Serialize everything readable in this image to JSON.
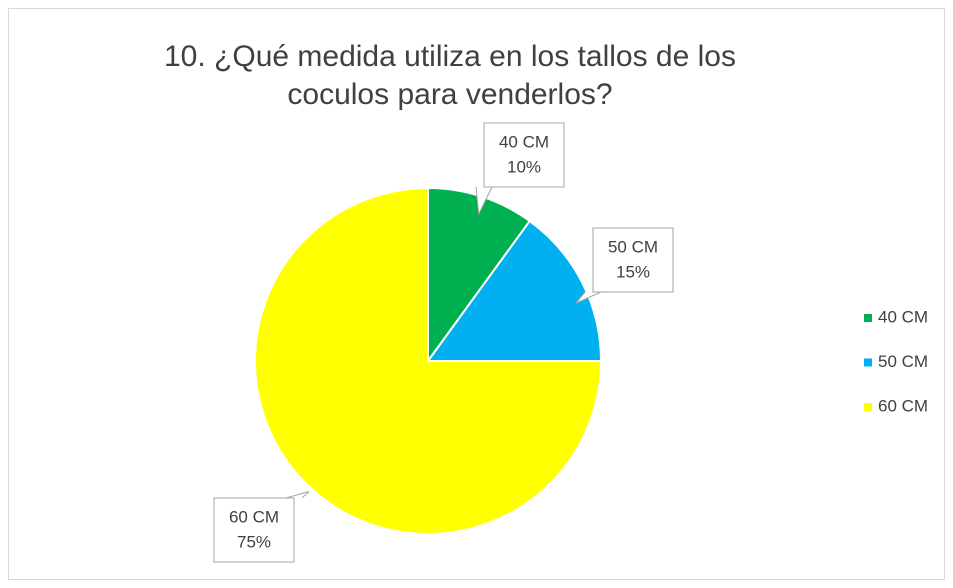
{
  "chart_data": {
    "type": "pie",
    "title": "10. ¿Qué medida utiliza en los tallos de los coculos para venderlos?",
    "categories": [
      "40 CM",
      "50 CM",
      "60 CM"
    ],
    "values": [
      10,
      15,
      75
    ],
    "value_labels": [
      "10%",
      "15%",
      "75%"
    ],
    "colors": [
      "#00b050",
      "#00b0f0",
      "#ffff00"
    ],
    "legend": "right"
  }
}
